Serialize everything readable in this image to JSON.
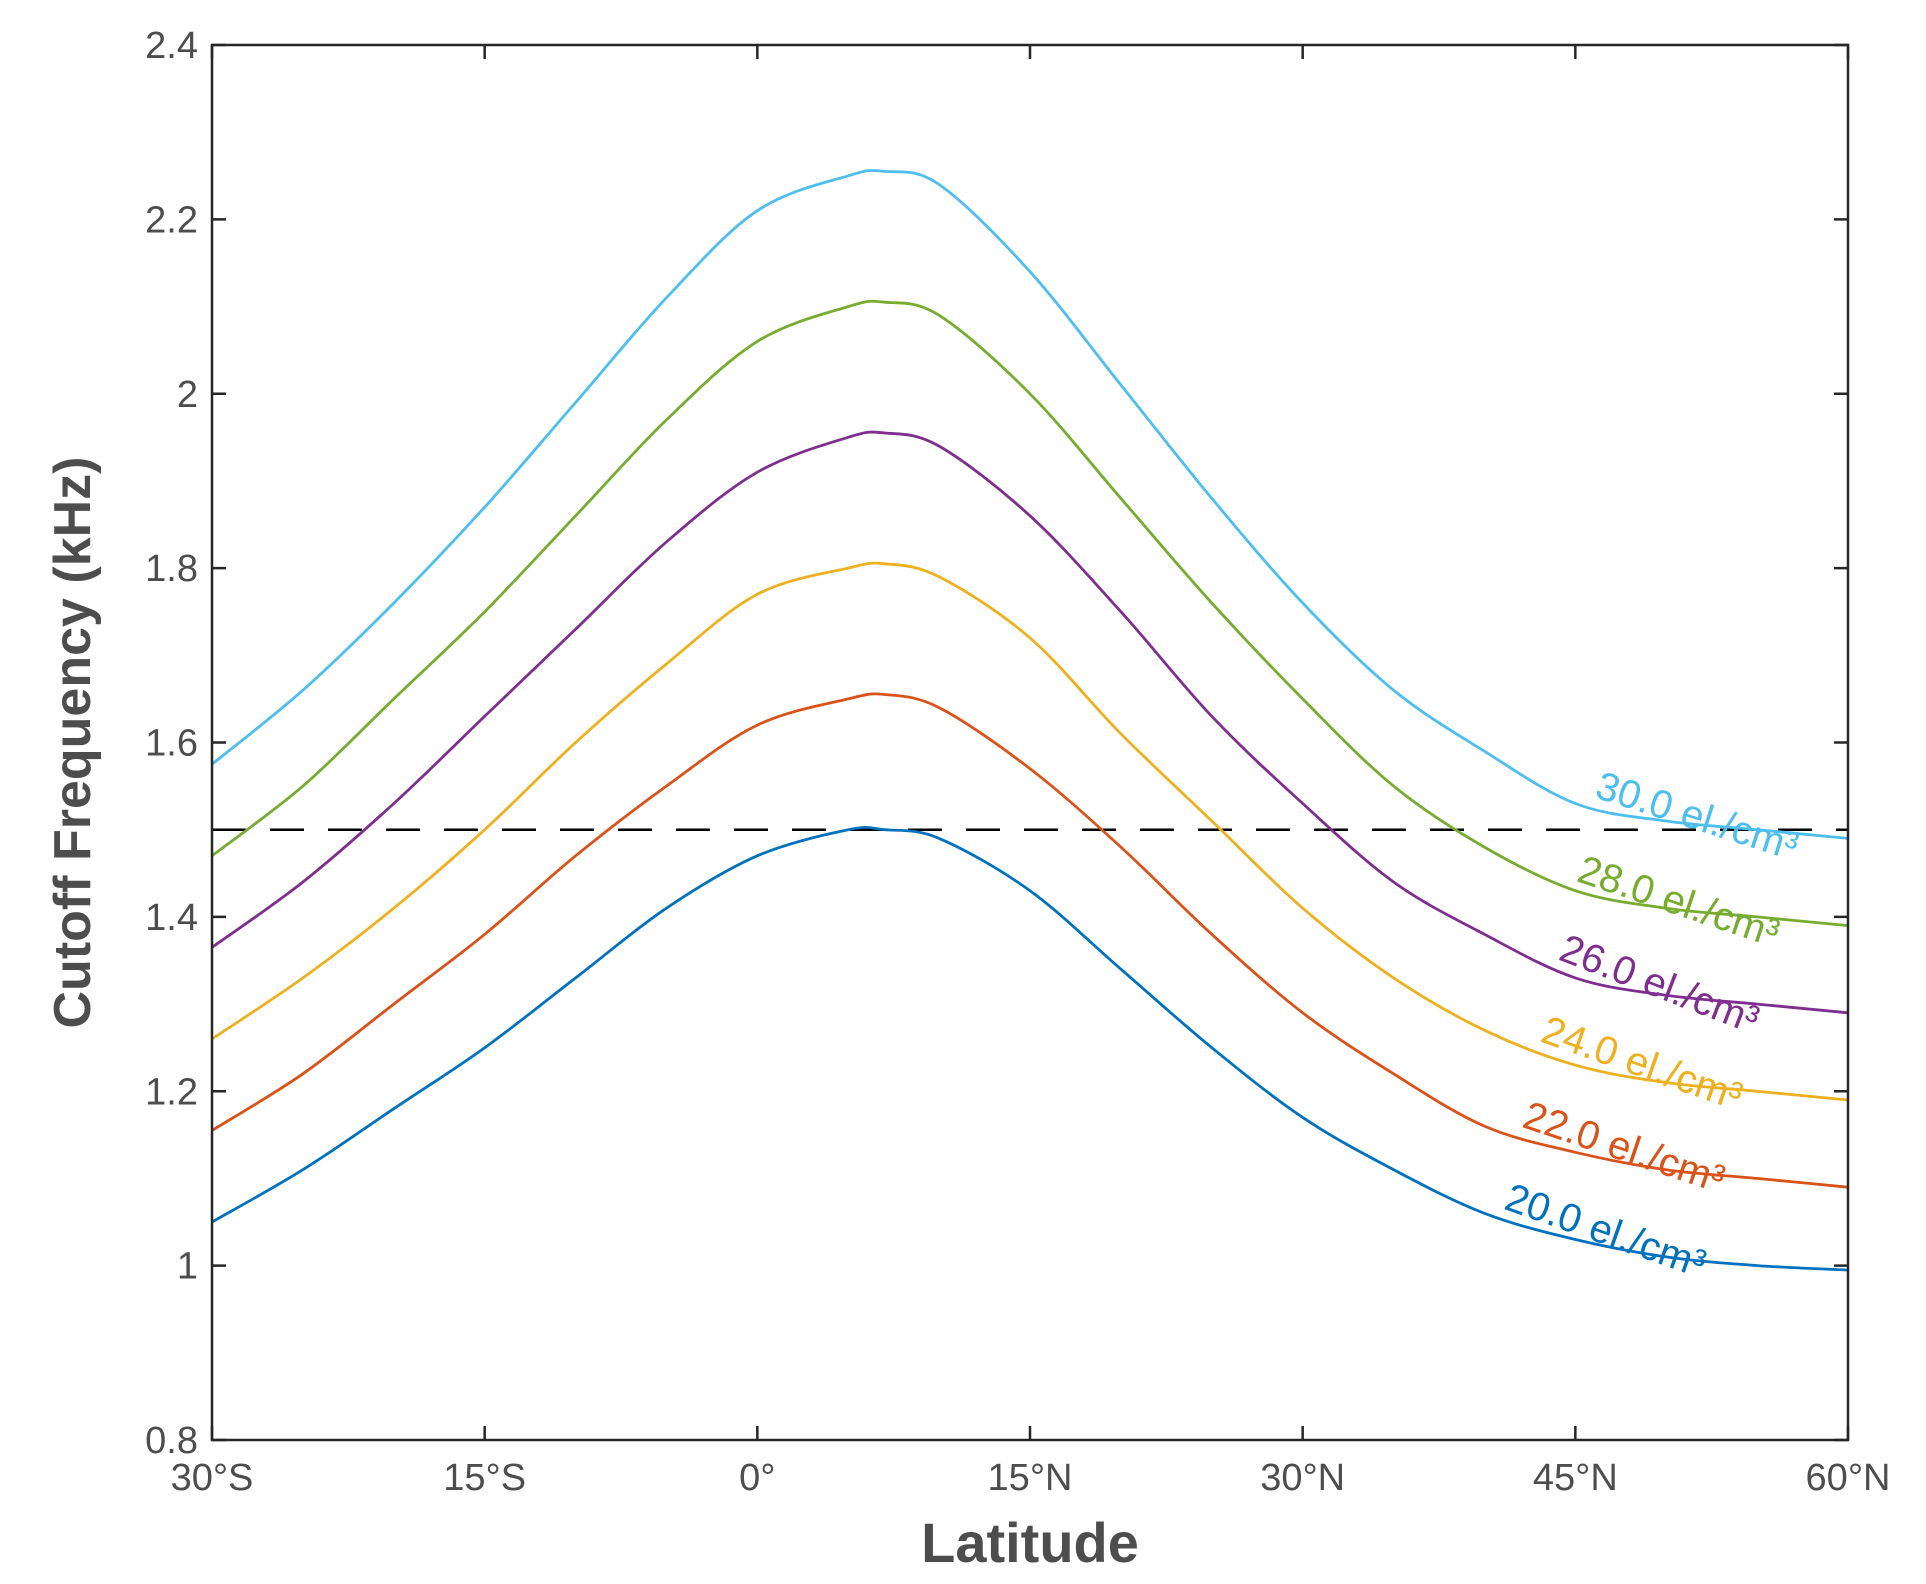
{
  "chart_data": {
    "type": "line",
    "title": "",
    "xlabel": "Latitude",
    "ylabel": "Cutoff Frequency (kHz)",
    "xlim": [
      -30,
      60
    ],
    "ylim": [
      0.8,
      2.4
    ],
    "x_ticks": [
      {
        "value": -30,
        "label": "30°S"
      },
      {
        "value": -15,
        "label": "15°S"
      },
      {
        "value": 0,
        "label": "0°"
      },
      {
        "value": 15,
        "label": "15°N"
      },
      {
        "value": 30,
        "label": "30°N"
      },
      {
        "value": 45,
        "label": "45°N"
      },
      {
        "value": 60,
        "label": "60°N"
      }
    ],
    "y_ticks": [
      {
        "value": 0.8,
        "label": "0.8"
      },
      {
        "value": 1.0,
        "label": "1"
      },
      {
        "value": 1.2,
        "label": "1.2"
      },
      {
        "value": 1.4,
        "label": "1.4"
      },
      {
        "value": 1.6,
        "label": "1.6"
      },
      {
        "value": 1.8,
        "label": "1.8"
      },
      {
        "value": 2.0,
        "label": "2"
      },
      {
        "value": 2.2,
        "label": "2.2"
      },
      {
        "value": 2.4,
        "label": "2.4"
      }
    ],
    "grid": false,
    "reference_line": {
      "y": 1.5,
      "style": "dashed",
      "color": "#000000"
    },
    "x": [
      -30,
      -25,
      -20,
      -15,
      -10,
      -5,
      0,
      5,
      7,
      10,
      15,
      20,
      25,
      30,
      35,
      40,
      45,
      50,
      55,
      60
    ],
    "series": [
      {
        "name": "20.0 el./cm³",
        "color": "#0072BD",
        "label_anchor_x": 41,
        "values": [
          1.05,
          1.11,
          1.18,
          1.25,
          1.33,
          1.41,
          1.47,
          1.5,
          1.5,
          1.49,
          1.43,
          1.34,
          1.25,
          1.17,
          1.11,
          1.06,
          1.03,
          1.01,
          1.0,
          0.995
        ]
      },
      {
        "name": "22.0 el./cm³",
        "color": "#D95319",
        "label_anchor_x": 42,
        "values": [
          1.155,
          1.22,
          1.3,
          1.38,
          1.47,
          1.55,
          1.62,
          1.65,
          1.655,
          1.64,
          1.57,
          1.48,
          1.38,
          1.29,
          1.22,
          1.16,
          1.13,
          1.11,
          1.1,
          1.09
        ]
      },
      {
        "name": "24.0 el./cm³",
        "color": "#EDB120",
        "label_anchor_x": 43,
        "values": [
          1.26,
          1.33,
          1.41,
          1.5,
          1.6,
          1.69,
          1.77,
          1.8,
          1.805,
          1.79,
          1.72,
          1.61,
          1.51,
          1.41,
          1.33,
          1.27,
          1.23,
          1.21,
          1.2,
          1.19
        ]
      },
      {
        "name": "26.0 el./cm³",
        "color": "#7E2F8E",
        "label_anchor_x": 44,
        "values": [
          1.365,
          1.44,
          1.53,
          1.63,
          1.73,
          1.83,
          1.91,
          1.95,
          1.955,
          1.94,
          1.86,
          1.75,
          1.63,
          1.53,
          1.44,
          1.38,
          1.33,
          1.31,
          1.3,
          1.29
        ]
      },
      {
        "name": "28.0 el./cm³",
        "color": "#77AC30",
        "label_anchor_x": 45,
        "values": [
          1.47,
          1.55,
          1.65,
          1.75,
          1.86,
          1.97,
          2.06,
          2.1,
          2.105,
          2.09,
          2.0,
          1.88,
          1.76,
          1.65,
          1.55,
          1.48,
          1.43,
          1.41,
          1.4,
          1.39
        ]
      },
      {
        "name": "30.0 el./cm³",
        "color": "#4DBEEE",
        "label_anchor_x": 46,
        "values": [
          1.575,
          1.66,
          1.76,
          1.87,
          1.99,
          2.11,
          2.21,
          2.25,
          2.255,
          2.24,
          2.14,
          2.01,
          1.88,
          1.76,
          1.66,
          1.59,
          1.53,
          1.51,
          1.5,
          1.49
        ]
      }
    ]
  }
}
